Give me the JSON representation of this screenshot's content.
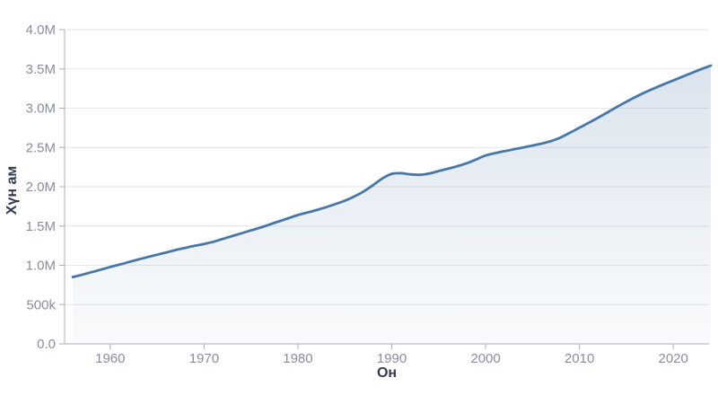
{
  "chart_data": {
    "type": "area",
    "xlabel": "Он",
    "ylabel": "Хүн ам",
    "xlim": [
      1956,
      2024
    ],
    "ylim": [
      0,
      4000000
    ],
    "xticks": [
      1960,
      1970,
      1980,
      1990,
      2000,
      2010,
      2020
    ],
    "yticks": [
      {
        "value": 0,
        "label": "0.0"
      },
      {
        "value": 500000,
        "label": "500k"
      },
      {
        "value": 1000000,
        "label": "1.0M"
      },
      {
        "value": 1500000,
        "label": "1.5M"
      },
      {
        "value": 2000000,
        "label": "2.0M"
      },
      {
        "value": 2500000,
        "label": "2.5M"
      },
      {
        "value": 3000000,
        "label": "3.0M"
      },
      {
        "value": 3500000,
        "label": "3.5M"
      },
      {
        "value": 4000000,
        "label": "4.0M"
      }
    ],
    "grid": "horizontal",
    "legend": "none",
    "colors": {
      "line": "#4777a8",
      "area": "#4777a8",
      "area_opacity_top": 0.22,
      "area_opacity_bottom": 0.03,
      "grid": "#e4e6ea",
      "axis": "#a9aeb8",
      "tick_label": "#858e9e",
      "axis_title": "#2f3a4f",
      "background": "#ffffff"
    },
    "series": [
      {
        "name": "Хүн ам",
        "x": [
          1956,
          1957,
          1958,
          1959,
          1960,
          1961,
          1962,
          1963,
          1964,
          1965,
          1966,
          1967,
          1968,
          1969,
          1970,
          1971,
          1972,
          1973,
          1974,
          1975,
          1976,
          1977,
          1978,
          1979,
          1980,
          1981,
          1982,
          1983,
          1984,
          1985,
          1986,
          1987,
          1988,
          1989,
          1990,
          1991,
          1992,
          1993,
          1994,
          1995,
          1996,
          1997,
          1998,
          1999,
          2000,
          2001,
          2002,
          2003,
          2004,
          2005,
          2006,
          2007,
          2008,
          2009,
          2010,
          2011,
          2012,
          2013,
          2014,
          2015,
          2016,
          2017,
          2018,
          2019,
          2020,
          2021,
          2022,
          2023,
          2024
        ],
        "values": [
          850000,
          880000,
          912000,
          945000,
          978000,
          1010000,
          1042000,
          1074000,
          1105000,
          1135000,
          1165000,
          1195000,
          1222000,
          1248000,
          1272000,
          1300000,
          1336000,
          1372000,
          1408000,
          1444000,
          1480000,
          1520000,
          1560000,
          1600000,
          1640000,
          1672000,
          1704000,
          1740000,
          1780000,
          1822000,
          1875000,
          1940000,
          2020000,
          2105000,
          2165000,
          2172000,
          2158000,
          2152000,
          2168000,
          2200000,
          2230000,
          2262000,
          2300000,
          2348000,
          2398000,
          2428000,
          2452000,
          2476000,
          2500000,
          2525000,
          2550000,
          2582000,
          2628000,
          2688000,
          2752000,
          2815000,
          2880000,
          2948000,
          3016000,
          3082000,
          3144000,
          3202000,
          3255000,
          3305000,
          3353000,
          3402000,
          3450000,
          3498000,
          3542000
        ]
      }
    ]
  }
}
